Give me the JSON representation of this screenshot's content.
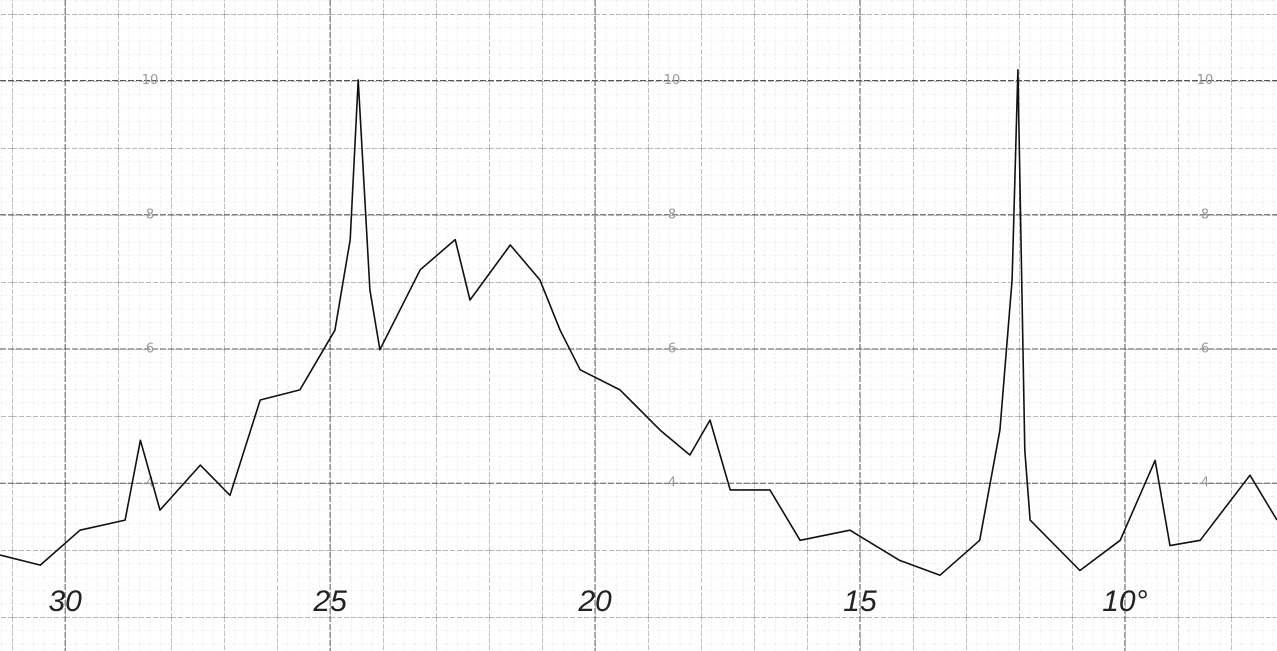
{
  "chart_data": {
    "type": "line",
    "x": [
      31.23,
      30.47,
      29.72,
      28.87,
      28.58,
      28.21,
      27.45,
      26.89,
      26.32,
      25.57,
      24.91,
      24.62,
      24.47,
      24.25,
      24.06,
      23.3,
      22.64,
      22.36,
      21.6,
      21.04,
      20.66,
      20.28,
      19.53,
      18.77,
      18.21,
      17.83,
      17.45,
      16.7,
      16.13,
      15.19,
      14.25,
      13.49,
      12.74,
      12.36,
      12.13,
      12.02,
      11.89,
      11.79,
      10.85,
      10.09,
      9.43,
      9.15,
      8.58,
      7.64,
      7.13
    ],
    "series": [
      {
        "color": "#111111",
        "values": [
          2.93,
          2.78,
          3.3,
          3.45,
          4.64,
          3.6,
          4.27,
          3.82,
          5.24,
          5.39,
          6.28,
          7.63,
          10.01,
          6.88,
          5.99,
          7.18,
          7.63,
          6.73,
          7.55,
          7.03,
          6.28,
          5.69,
          5.39,
          4.79,
          4.42,
          4.94,
          3.9,
          3.9,
          3.15,
          3.3,
          2.85,
          2.63,
          3.15,
          4.79,
          7.03,
          10.16,
          4.49,
          3.45,
          2.7,
          3.15,
          4.34,
          3.07,
          3.15,
          4.12,
          3.45
        ]
      }
    ],
    "xlim": [
      31.23,
      7.13
    ],
    "xticks": [
      30,
      25,
      20,
      15,
      {
        "value": 10,
        "label": "10°"
      }
    ],
    "ylim": [
      1.5,
      11.2
    ],
    "yticks": [
      4,
      6,
      8,
      10
    ],
    "grid": true
  }
}
